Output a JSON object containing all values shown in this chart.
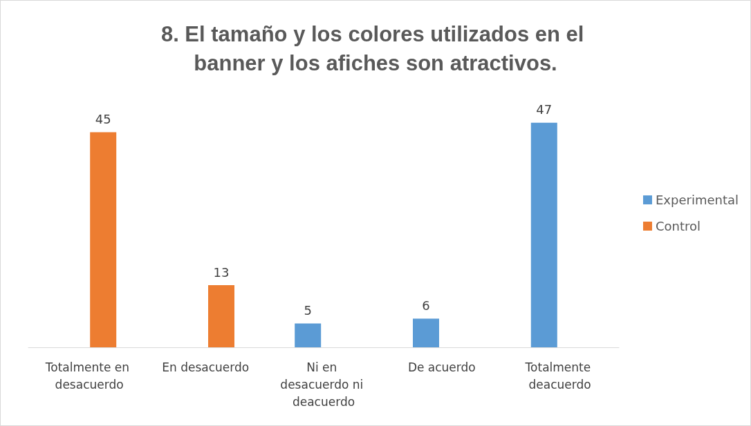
{
  "chart_data": {
    "type": "bar",
    "title": "8. El tamaño y los colores utilizados en el banner y los afiches son atractivos.",
    "categories": [
      "Totalmente en desacuerdo",
      "En desacuerdo",
      "Ni en desacuerdo ni deacuerdo",
      "De acuerdo",
      "Totalmente deacuerdo"
    ],
    "series": [
      {
        "name": "Experimental",
        "color": "#5b9bd5",
        "values": [
          null,
          null,
          5,
          6,
          47
        ]
      },
      {
        "name": "Control",
        "color": "#ed7d31",
        "values": [
          45,
          13,
          null,
          null,
          null
        ]
      }
    ],
    "data_labels": true,
    "legend": "right"
  }
}
